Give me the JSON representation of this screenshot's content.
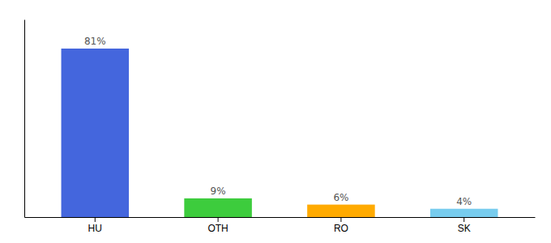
{
  "chart_data": {
    "type": "bar",
    "categories": [
      "HU",
      "OTH",
      "RO",
      "SK"
    ],
    "values": [
      81,
      9,
      6,
      4
    ],
    "value_labels": [
      "81%",
      "9%",
      "6%",
      "4%"
    ],
    "colors": [
      "#4466dd",
      "#3dcc3d",
      "#ffaa00",
      "#77ccee"
    ],
    "ylim": [
      0,
      95
    ],
    "data_labels": true,
    "tick_labels": "x",
    "grid": false
  }
}
